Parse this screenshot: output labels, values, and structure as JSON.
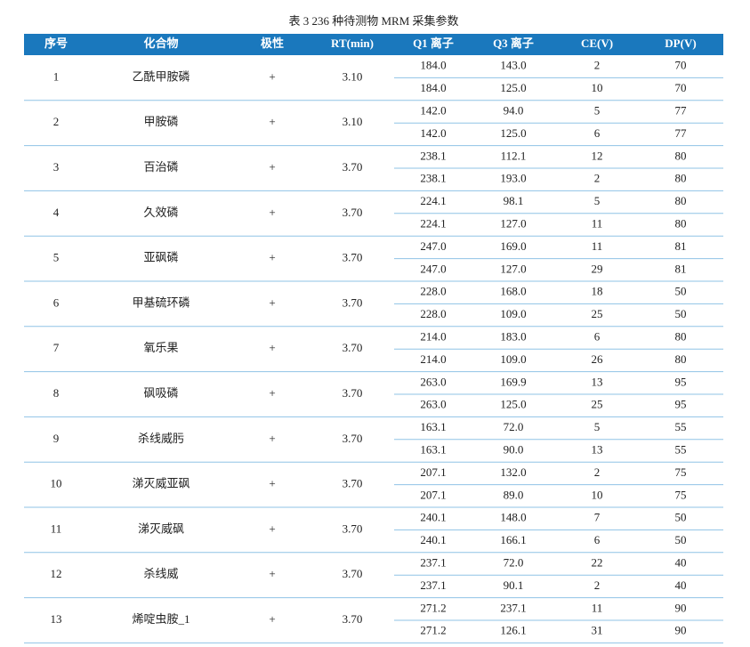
{
  "title": "表 3 236 种待测物 MRM 采集参数",
  "table": {
    "headers": [
      "序号",
      "化合物",
      "极性",
      "RT(min)",
      "Q1 离子",
      "Q3 离子",
      "CE(V)",
      "DP(V)"
    ],
    "rows": [
      {
        "no": "1",
        "name": "乙酰甲胺磷",
        "polarity": "+",
        "rt": "3.10",
        "transitions": [
          [
            "184.0",
            "143.0",
            "2",
            "70"
          ],
          [
            "184.0",
            "125.0",
            "10",
            "70"
          ]
        ]
      },
      {
        "no": "2",
        "name": "甲胺磷",
        "polarity": "+",
        "rt": "3.10",
        "transitions": [
          [
            "142.0",
            "94.0",
            "5",
            "77"
          ],
          [
            "142.0",
            "125.0",
            "6",
            "77"
          ]
        ]
      },
      {
        "no": "3",
        "name": "百治磷",
        "polarity": "+",
        "rt": "3.70",
        "transitions": [
          [
            "238.1",
            "112.1",
            "12",
            "80"
          ],
          [
            "238.1",
            "193.0",
            "2",
            "80"
          ]
        ]
      },
      {
        "no": "4",
        "name": "久效磷",
        "polarity": "+",
        "rt": "3.70",
        "transitions": [
          [
            "224.1",
            "98.1",
            "5",
            "80"
          ],
          [
            "224.1",
            "127.0",
            "11",
            "80"
          ]
        ]
      },
      {
        "no": "5",
        "name": "亚砜磷",
        "polarity": "+",
        "rt": "3.70",
        "transitions": [
          [
            "247.0",
            "169.0",
            "11",
            "81"
          ],
          [
            "247.0",
            "127.0",
            "29",
            "81"
          ]
        ]
      },
      {
        "no": "6",
        "name": "甲基硫环磷",
        "polarity": "+",
        "rt": "3.70",
        "transitions": [
          [
            "228.0",
            "168.0",
            "18",
            "50"
          ],
          [
            "228.0",
            "109.0",
            "25",
            "50"
          ]
        ]
      },
      {
        "no": "7",
        "name": "氧乐果",
        "polarity": "+",
        "rt": "3.70",
        "transitions": [
          [
            "214.0",
            "183.0",
            "6",
            "80"
          ],
          [
            "214.0",
            "109.0",
            "26",
            "80"
          ]
        ]
      },
      {
        "no": "8",
        "name": "砜吸磷",
        "polarity": "+",
        "rt": "3.70",
        "transitions": [
          [
            "263.0",
            "169.9",
            "13",
            "95"
          ],
          [
            "263.0",
            "125.0",
            "25",
            "95"
          ]
        ]
      },
      {
        "no": "9",
        "name": "杀线威肟",
        "polarity": "+",
        "rt": "3.70",
        "transitions": [
          [
            "163.1",
            "72.0",
            "5",
            "55"
          ],
          [
            "163.1",
            "90.0",
            "13",
            "55"
          ]
        ]
      },
      {
        "no": "10",
        "name": "涕灭威亚砜",
        "polarity": "+",
        "rt": "3.70",
        "transitions": [
          [
            "207.1",
            "132.0",
            "2",
            "75"
          ],
          [
            "207.1",
            "89.0",
            "10",
            "75"
          ]
        ]
      },
      {
        "no": "11",
        "name": "涕灭威砜",
        "polarity": "+",
        "rt": "3.70",
        "transitions": [
          [
            "240.1",
            "148.0",
            "7",
            "50"
          ],
          [
            "240.1",
            "166.1",
            "6",
            "50"
          ]
        ]
      },
      {
        "no": "12",
        "name": "杀线威",
        "polarity": "+",
        "rt": "3.70",
        "transitions": [
          [
            "237.1",
            "72.0",
            "22",
            "40"
          ],
          [
            "237.1",
            "90.1",
            "2",
            "40"
          ]
        ]
      },
      {
        "no": "13",
        "name": "烯啶虫胺_1",
        "polarity": "+",
        "rt": "3.70",
        "transitions": [
          [
            "271.2",
            "237.1",
            "11",
            "90"
          ],
          [
            "271.2",
            "126.1",
            "31",
            "90"
          ]
        ]
      }
    ]
  }
}
